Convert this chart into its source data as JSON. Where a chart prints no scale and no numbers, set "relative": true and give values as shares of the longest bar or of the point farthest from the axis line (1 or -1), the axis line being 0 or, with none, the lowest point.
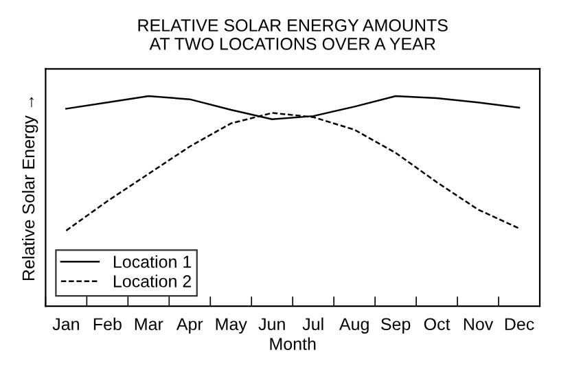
{
  "chart_data": {
    "type": "line",
    "title": "RELATIVE SOLAR ENERGY AMOUNTS\nAT TWO LOCATIONS OVER A YEAR",
    "xlabel": "Month",
    "ylabel": "Relative Solar Energy →",
    "relative": true,
    "categories": [
      "Jan",
      "Feb",
      "Mar",
      "Apr",
      "May",
      "Jun",
      "Jul",
      "Aug",
      "Sep",
      "Oct",
      "Nov",
      "Dec"
    ],
    "legend": "bottom left",
    "tick_labels": "x",
    "series": [
      {
        "name": "Location 1",
        "color": "#000000",
        "line_style": "solid",
        "values": [
          0.94,
          0.97,
          1.0,
          0.985,
          0.935,
          0.89,
          0.905,
          0.95,
          1.0,
          0.99,
          0.97,
          0.945
        ]
      },
      {
        "name": "Location 2",
        "color": "#000000",
        "line_style": "dashed",
        "values": [
          0.36,
          0.5,
          0.63,
          0.76,
          0.87,
          0.92,
          0.9,
          0.84,
          0.73,
          0.59,
          0.46,
          0.37
        ]
      }
    ]
  }
}
